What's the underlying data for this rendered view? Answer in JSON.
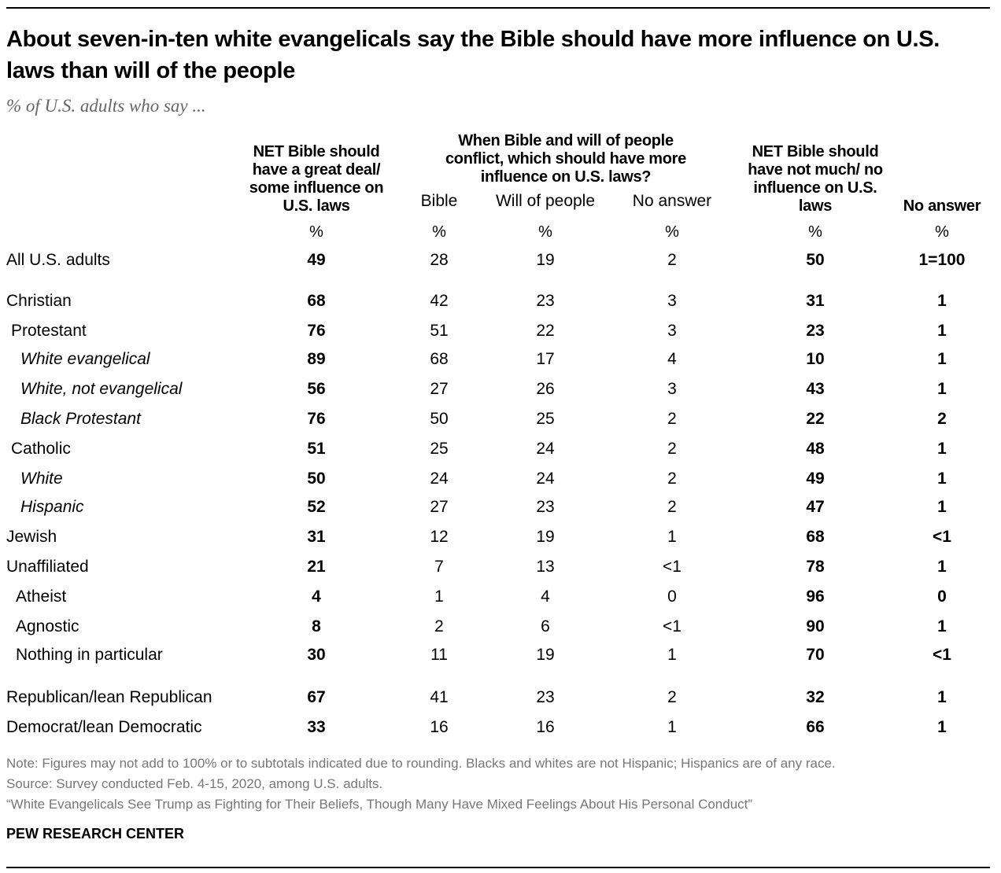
{
  "title": "About seven-in-ten white evangelicals say the Bible should have more influence on U.S. laws than will of the people",
  "subtitle": "% of U.S. adults who say ...",
  "chart_data": {
    "type": "table",
    "group_header": "When Bible and will of people conflict, which should have more influence on U.S. laws?",
    "columns": [
      {
        "label": "NET Bible should have a great deal/ some influence on U.S. laws",
        "unit": "%",
        "bold": true
      },
      {
        "label": "Bible",
        "unit": "%",
        "bold": false
      },
      {
        "label": "Will of people",
        "unit": "%",
        "bold": false
      },
      {
        "label": "No answer",
        "unit": "%",
        "bold": false
      },
      {
        "label": "NET Bible should have not much/ no influence on U.S. laws",
        "unit": "%",
        "bold": true
      },
      {
        "label": "No answer",
        "unit": "%",
        "bold": true
      }
    ],
    "rows": [
      {
        "label": "All U.S. adults",
        "level": 0,
        "italic": false,
        "values": [
          "49",
          "28",
          "19",
          "2",
          "50",
          "1=100"
        ]
      },
      {
        "label": "Christian",
        "level": 0,
        "italic": false,
        "values": [
          "68",
          "42",
          "23",
          "3",
          "31",
          "1"
        ]
      },
      {
        "label": "Protestant",
        "level": 1,
        "italic": false,
        "values": [
          "76",
          "51",
          "22",
          "3",
          "23",
          "1"
        ]
      },
      {
        "label": "White evangelical",
        "level": 2,
        "italic": true,
        "values": [
          "89",
          "68",
          "17",
          "4",
          "10",
          "1"
        ]
      },
      {
        "label": "White, not evangelical",
        "level": 2,
        "italic": true,
        "values": [
          "56",
          "27",
          "26",
          "3",
          "43",
          "1"
        ]
      },
      {
        "label": "Black Protestant",
        "level": 2,
        "italic": true,
        "values": [
          "76",
          "50",
          "25",
          "2",
          "22",
          "2"
        ]
      },
      {
        "label": "Catholic",
        "level": 1,
        "italic": false,
        "values": [
          "51",
          "25",
          "24",
          "2",
          "48",
          "1"
        ]
      },
      {
        "label": "White",
        "level": 2,
        "italic": true,
        "values": [
          "50",
          "24",
          "24",
          "2",
          "49",
          "1"
        ]
      },
      {
        "label": "Hispanic",
        "level": 2,
        "italic": true,
        "values": [
          "52",
          "27",
          "23",
          "2",
          "47",
          "1"
        ]
      },
      {
        "label": "Jewish",
        "level": 0,
        "italic": false,
        "values": [
          "31",
          "12",
          "19",
          "1",
          "68",
          "<1"
        ]
      },
      {
        "label": "Unaffiliated",
        "level": 0,
        "italic": false,
        "values": [
          "21",
          "7",
          "13",
          "<1",
          "78",
          "1"
        ]
      },
      {
        "label": "Atheist",
        "level": 1,
        "italic": false,
        "values": [
          "4",
          "1",
          "4",
          "0",
          "96",
          "0"
        ]
      },
      {
        "label": "Agnostic",
        "level": 1,
        "italic": false,
        "values": [
          "8",
          "2",
          "6",
          "<1",
          "90",
          "1"
        ]
      },
      {
        "label": "Nothing in particular",
        "level": 1,
        "italic": false,
        "values": [
          "30",
          "11",
          "19",
          "1",
          "70",
          "<1"
        ]
      },
      {
        "label": "Republican/lean Republican",
        "level": 0,
        "italic": false,
        "values": [
          "67",
          "41",
          "23",
          "2",
          "32",
          "1"
        ]
      },
      {
        "label": "Democrat/lean Democratic",
        "level": 0,
        "italic": false,
        "values": [
          "33",
          "16",
          "16",
          "1",
          "66",
          "1"
        ]
      }
    ]
  },
  "notes": {
    "note": "Note: Figures may not add to 100% or to subtotals indicated due to rounding. Blacks and whites are not Hispanic; Hispanics are of any race.",
    "source": "Source: Survey conducted Feb. 4-15, 2020, among U.S. adults.",
    "report": "“White Evangelicals See Trump as Fighting for Their Beliefs, Though Many Have Mixed Feelings About His Personal Conduct”",
    "brand": "PEW RESEARCH CENTER"
  }
}
